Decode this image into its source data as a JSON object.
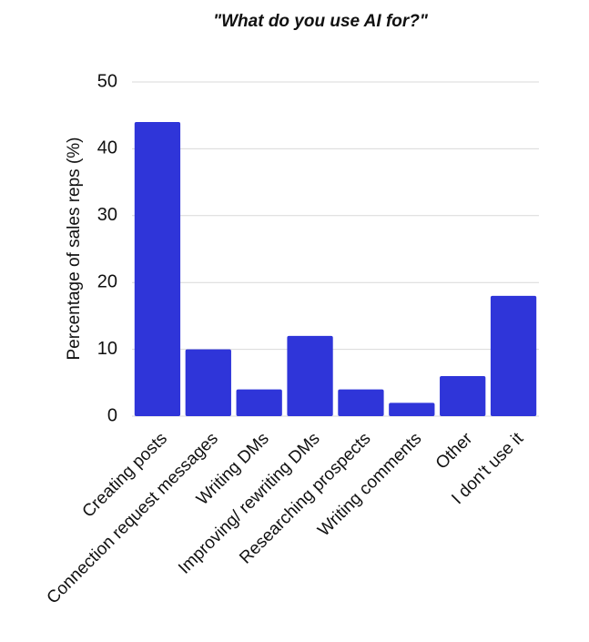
{
  "chart_data": {
    "type": "bar",
    "title": "\"What do you use AI for?\"",
    "y_label": "Percentage of sales reps (%)",
    "categories": [
      "Creating posts",
      "Connection request messages",
      "Writing DMs",
      "Improving/ rewriting DMs",
      "Researching prospects",
      "Writing comments",
      "Other",
      "I don't use it"
    ],
    "values": [
      44,
      10,
      4,
      12,
      4,
      2,
      6,
      18
    ],
    "color": "#2f35d9",
    "ylim": [
      0,
      50
    ],
    "yticks": [
      0,
      10,
      20,
      30,
      40,
      50
    ],
    "grid": true
  }
}
